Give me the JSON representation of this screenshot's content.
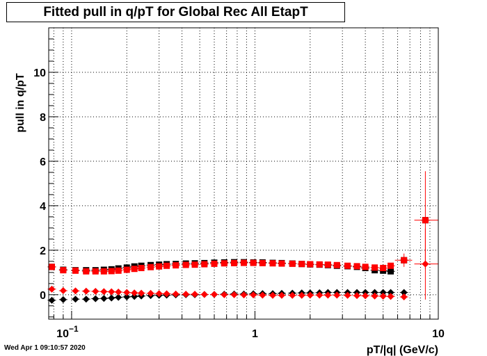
{
  "footer": {
    "timestamp": "Wed Apr  1 09:10:57 2020"
  },
  "chart_data": {
    "type": "scatter",
    "title": "Fitted pull in q/pT for Global Rec All EtapT",
    "xlabel": "pT/|q| (GeV/c)",
    "ylabel": "pull in q/pT",
    "x_scale": "log",
    "xlim": [
      0.075,
      10
    ],
    "ylim": [
      -1.1,
      12
    ],
    "grid": true,
    "x_ticks": [
      {
        "value": 0.1,
        "label": "10",
        "exp": "−1"
      },
      {
        "value": 1,
        "label": "1",
        "exp": ""
      },
      {
        "value": 10,
        "label": "10",
        "exp": ""
      }
    ],
    "y_ticks": [
      0,
      2,
      4,
      6,
      8,
      10
    ],
    "colors": {
      "black_series": "#000000",
      "red_series": "#ff0000"
    },
    "series": [
      {
        "marker": "square",
        "color": "#000000",
        "x": [
          0.078,
          0.09,
          0.105,
          0.12,
          0.135,
          0.15,
          0.165,
          0.18,
          0.2,
          0.22,
          0.24,
          0.27,
          0.3,
          0.33,
          0.37,
          0.42,
          0.47,
          0.53,
          0.6,
          0.68,
          0.77,
          0.87,
          0.98,
          1.1,
          1.25,
          1.4,
          1.6,
          1.8,
          2.0,
          2.25,
          2.5,
          2.8,
          3.2,
          3.6,
          4.0,
          4.5,
          5.0,
          5.5,
          6.5,
          8.5
        ],
        "y": [
          1.25,
          1.12,
          1.1,
          1.1,
          1.1,
          1.12,
          1.14,
          1.18,
          1.22,
          1.27,
          1.3,
          1.33,
          1.35,
          1.37,
          1.38,
          1.4,
          1.41,
          1.42,
          1.44,
          1.45,
          1.46,
          1.46,
          1.45,
          1.45,
          1.43,
          1.42,
          1.4,
          1.38,
          1.36,
          1.35,
          1.33,
          1.3,
          1.28,
          1.25,
          1.2,
          1.1,
          1.08,
          1.05,
          1.55,
          3.35
        ]
      },
      {
        "marker": "square",
        "color": "#ff0000",
        "x": [
          0.078,
          0.09,
          0.105,
          0.12,
          0.135,
          0.15,
          0.165,
          0.18,
          0.2,
          0.22,
          0.24,
          0.27,
          0.3,
          0.33,
          0.37,
          0.42,
          0.47,
          0.53,
          0.6,
          0.68,
          0.77,
          0.87,
          0.98,
          1.1,
          1.25,
          1.4,
          1.6,
          1.8,
          2.0,
          2.25,
          2.5,
          2.8,
          3.2,
          3.6,
          4.0,
          4.5,
          5.0,
          5.5,
          6.5,
          8.5
        ],
        "y": [
          1.25,
          1.1,
          1.08,
          1.05,
          1.05,
          1.05,
          1.06,
          1.08,
          1.12,
          1.16,
          1.2,
          1.24,
          1.27,
          1.3,
          1.32,
          1.34,
          1.35,
          1.37,
          1.39,
          1.41,
          1.42,
          1.43,
          1.43,
          1.42,
          1.41,
          1.4,
          1.39,
          1.38,
          1.37,
          1.36,
          1.35,
          1.33,
          1.3,
          1.28,
          1.25,
          1.22,
          1.2,
          1.3,
          1.55,
          3.35
        ]
      },
      {
        "marker": "diamond",
        "color": "#000000",
        "x": [
          0.078,
          0.09,
          0.105,
          0.12,
          0.135,
          0.15,
          0.165,
          0.18,
          0.2,
          0.22,
          0.24,
          0.27,
          0.3,
          0.33,
          0.37,
          0.42,
          0.47,
          0.53,
          0.6,
          0.68,
          0.77,
          0.87,
          0.98,
          1.1,
          1.25,
          1.4,
          1.6,
          1.8,
          2.0,
          2.25,
          2.5,
          2.8,
          3.2,
          3.6,
          4.0,
          4.5,
          5.0,
          5.5,
          6.5
        ],
        "y": [
          -0.25,
          -0.22,
          -0.2,
          -0.2,
          -0.18,
          -0.17,
          -0.15,
          -0.12,
          -0.1,
          -0.08,
          -0.06,
          -0.04,
          -0.03,
          -0.02,
          -0.01,
          0.0,
          0.0,
          0.01,
          0.01,
          0.02,
          0.03,
          0.03,
          0.04,
          0.05,
          0.05,
          0.06,
          0.07,
          0.08,
          0.08,
          0.09,
          0.1,
          0.1,
          0.1,
          0.1,
          0.1,
          0.1,
          0.1,
          0.1,
          0.1
        ]
      },
      {
        "marker": "diamond",
        "color": "#ff0000",
        "x": [
          0.078,
          0.09,
          0.105,
          0.12,
          0.135,
          0.15,
          0.165,
          0.18,
          0.2,
          0.22,
          0.24,
          0.27,
          0.3,
          0.33,
          0.37,
          0.42,
          0.47,
          0.53,
          0.6,
          0.68,
          0.77,
          0.87,
          0.98,
          1.1,
          1.25,
          1.4,
          1.6,
          1.8,
          2.0,
          2.25,
          2.5,
          2.8,
          3.2,
          3.6,
          4.0,
          4.5,
          5.0,
          5.5,
          6.5,
          8.5
        ],
        "y": [
          0.25,
          0.18,
          0.17,
          0.16,
          0.15,
          0.14,
          0.13,
          0.12,
          0.1,
          0.08,
          0.07,
          0.06,
          0.05,
          0.04,
          0.03,
          0.02,
          0.02,
          0.01,
          0.01,
          0.0,
          0.0,
          -0.01,
          -0.01,
          -0.02,
          -0.03,
          -0.03,
          -0.03,
          -0.03,
          -0.02,
          -0.02,
          -0.02,
          -0.02,
          -0.03,
          -0.04,
          -0.05,
          -0.06,
          -0.07,
          -0.08,
          -0.1,
          1.38
        ]
      }
    ],
    "wide_error_points": [
      {
        "x": 6.5,
        "y": 1.55,
        "x_lo": 5.8,
        "x_hi": 7.2,
        "y_err": 0.3,
        "color": "#ff0000"
      },
      {
        "x": 8.5,
        "y": 3.35,
        "x_lo": 7.4,
        "x_hi": 10,
        "y_err": 2.2,
        "color": "#ff0000"
      },
      {
        "x": 8.5,
        "y": 1.38,
        "x_lo": 7.4,
        "x_hi": 10,
        "y_err": 1.6,
        "color": "#ff0000"
      }
    ]
  }
}
